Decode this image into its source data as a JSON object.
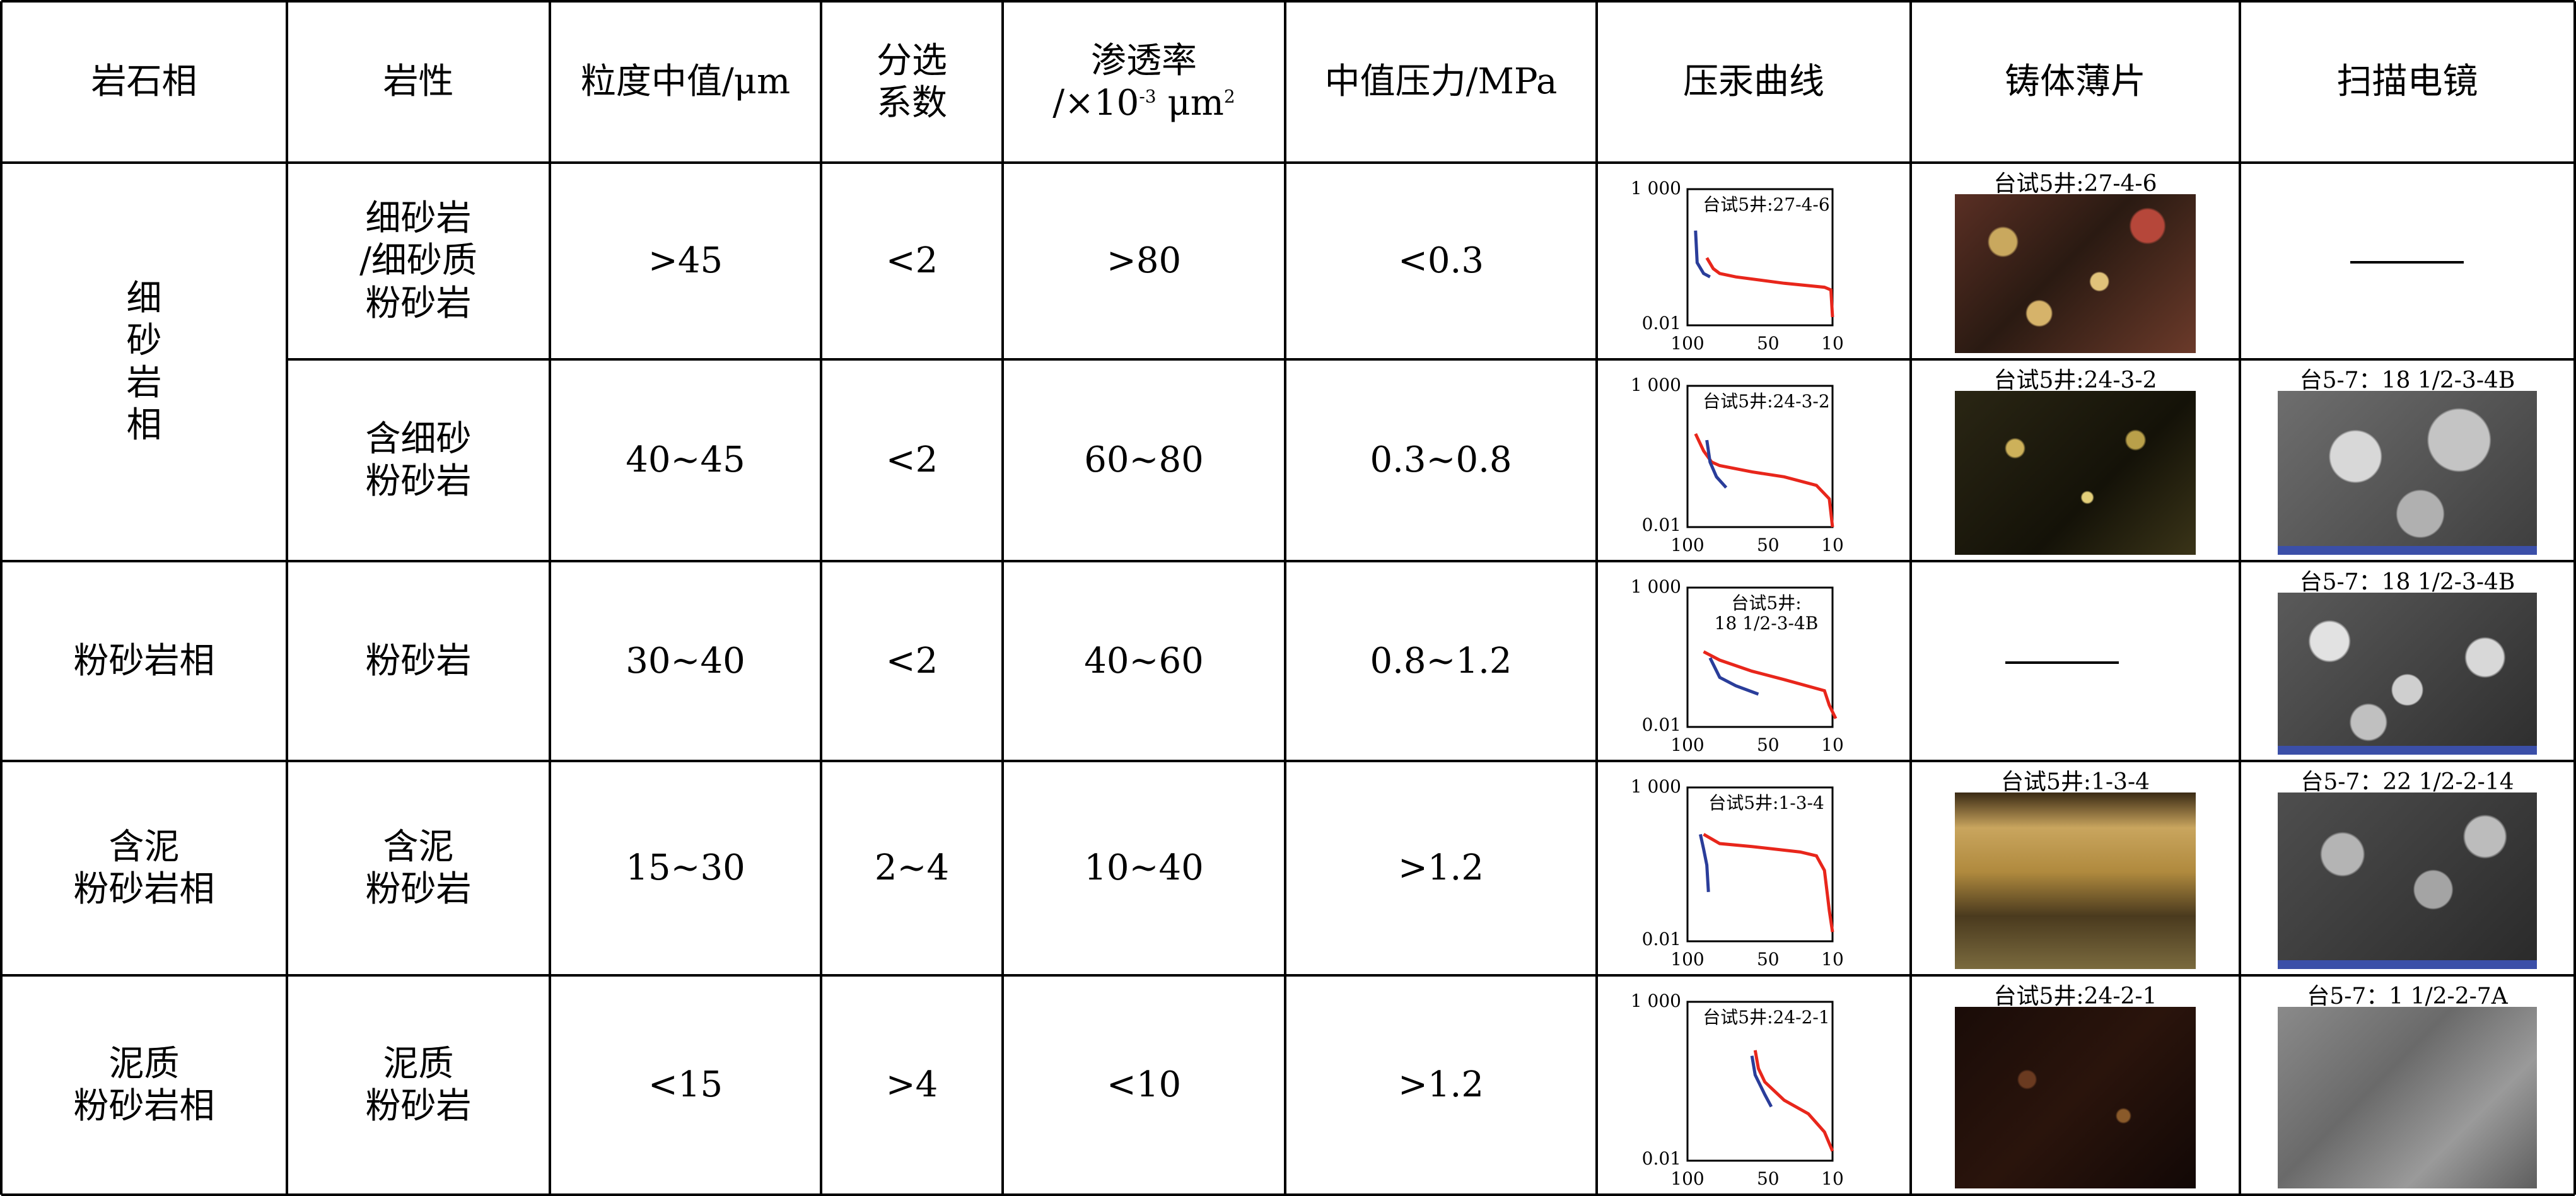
{
  "headers": {
    "facies": "岩石相",
    "lithology": "岩性",
    "grain_median": "粒度中值/μm",
    "sorting": [
      "分选",
      "系数"
    ],
    "perm_line1": "渗透率",
    "perm_line2_a": "/×10",
    "perm_exp": "-3",
    "perm_line2_b": " μm",
    "perm_exp2": "2",
    "median_pressure": "中值压力/MPa",
    "hg_curve": "压汞曲线",
    "cast_section": "铸体薄片",
    "sem": "扫描电镜"
  },
  "facies_groups": [
    {
      "label_chars": [
        "细",
        "砂",
        "岩",
        "相"
      ]
    },
    {
      "label_lines": [
        "粉砂岩相"
      ]
    },
    {
      "label_lines": [
        "含泥",
        "粉砂岩相"
      ]
    },
    {
      "label_lines": [
        "泥质",
        "粉砂岩相"
      ]
    }
  ],
  "rows": [
    {
      "lithology": [
        "细砂岩",
        "/细砂质",
        "粉砂岩"
      ],
      "grain": ">45",
      "sorting": "<2",
      "perm": ">80",
      "pressure": "<0.3",
      "curve_label": [
        "台试5井:27-4-6"
      ],
      "cast_caption": "",
      "sem_caption": "",
      "cast": "mixed",
      "sem": "none"
    },
    {
      "lithology": [
        "含细砂",
        "粉砂岩"
      ],
      "grain": "40~45",
      "sorting": "<2",
      "perm": "60~80",
      "pressure": "0.3~0.8",
      "curve_label": [
        "台试5井:24-3-2"
      ],
      "cast_caption": "台试5井:24-3-2",
      "sem_caption": "台5-7：18 1/2-3-4B",
      "cast": "dark",
      "sem": "grains"
    },
    {
      "lithology": [
        "粉砂岩"
      ],
      "grain": "30~40",
      "sorting": "<2",
      "perm": "40~60",
      "pressure": "0.8~1.2",
      "curve_label": [
        "台试5井:",
        "18 1/2-3-4B"
      ],
      "cast_caption": "",
      "sem_caption": "台5-7：18 1/2-3-4B",
      "cast": "none",
      "sem": "grains2"
    },
    {
      "lithology": [
        "含泥",
        "粉砂岩"
      ],
      "grain": "15~30",
      "sorting": "2~4",
      "perm": "10~40",
      "pressure": ">1.2",
      "curve_label": [
        "台试5井:1-3-4"
      ],
      "cast_caption": "台试5井:1-3-4",
      "sem_caption": "台5-7：22 1/2-2-14",
      "cast": "gold",
      "sem": "grains3"
    },
    {
      "lithology": [
        "泥质",
        "粉砂岩"
      ],
      "grain": "<15",
      "sorting": ">4",
      "perm": "<10",
      "pressure": ">1.2",
      "curve_label": [
        "台试5井:24-2-1"
      ],
      "cast_caption": "台试5井:24-2-1",
      "sem_caption": "台5-7：1 1/2-2-7A",
      "cast": "darkred",
      "sem": "mud"
    }
  ],
  "row1_cast_caption": "台试5井:27-4-6",
  "curve_axis": {
    "y_top": "1 000",
    "y_bottom": "0.01",
    "x_ticks": [
      "100",
      "50",
      "10"
    ]
  },
  "curves": [
    {
      "red": [
        [
          88,
          3
        ],
        [
          84,
          1.2
        ],
        [
          80,
          0.8
        ],
        [
          70,
          0.6
        ],
        [
          40,
          0.35
        ],
        [
          15,
          0.25
        ],
        [
          11,
          0.2
        ],
        [
          10,
          0.02
        ]
      ],
      "blue": [
        [
          95,
          30
        ],
        [
          94,
          2
        ],
        [
          90,
          0.8
        ],
        [
          86,
          0.6
        ]
      ]
    },
    {
      "red": [
        [
          95,
          20
        ],
        [
          90,
          5
        ],
        [
          85,
          2
        ],
        [
          80,
          1.5
        ],
        [
          60,
          0.9
        ],
        [
          40,
          0.6
        ],
        [
          20,
          0.3
        ],
        [
          12,
          0.1
        ],
        [
          10,
          0.01
        ]
      ],
      "blue": [
        [
          88,
          12
        ],
        [
          86,
          2
        ],
        [
          82,
          0.6
        ],
        [
          76,
          0.25
        ]
      ]
    },
    {
      "red": [
        [
          90,
          5
        ],
        [
          80,
          2.5
        ],
        [
          60,
          1
        ],
        [
          40,
          0.5
        ],
        [
          15,
          0.2
        ],
        [
          12,
          0.06
        ],
        [
          8,
          0.02
        ]
      ],
      "blue": [
        [
          86,
          3
        ],
        [
          80,
          0.6
        ],
        [
          70,
          0.3
        ],
        [
          56,
          0.15
        ]
      ]
    },
    {
      "red": [
        [
          90,
          30
        ],
        [
          80,
          15
        ],
        [
          60,
          12
        ],
        [
          30,
          8
        ],
        [
          20,
          6
        ],
        [
          15,
          2
        ],
        [
          12,
          0.1
        ],
        [
          10,
          0.02
        ]
      ],
      "blue": [
        [
          92,
          30
        ],
        [
          90,
          10
        ],
        [
          88,
          3
        ],
        [
          87,
          0.4
        ]
      ]
    },
    {
      "red": [
        [
          58,
          30
        ],
        [
          56,
          8
        ],
        [
          52,
          3
        ],
        [
          40,
          0.8
        ],
        [
          25,
          0.3
        ],
        [
          15,
          0.08
        ],
        [
          10,
          0.02
        ]
      ],
      "blue": [
        [
          60,
          20
        ],
        [
          58,
          5
        ],
        [
          52,
          1.2
        ],
        [
          48,
          0.5
        ]
      ]
    }
  ],
  "colors": {
    "red": "#e8261b",
    "blue": "#2a3d9a",
    "border": "#000000"
  }
}
